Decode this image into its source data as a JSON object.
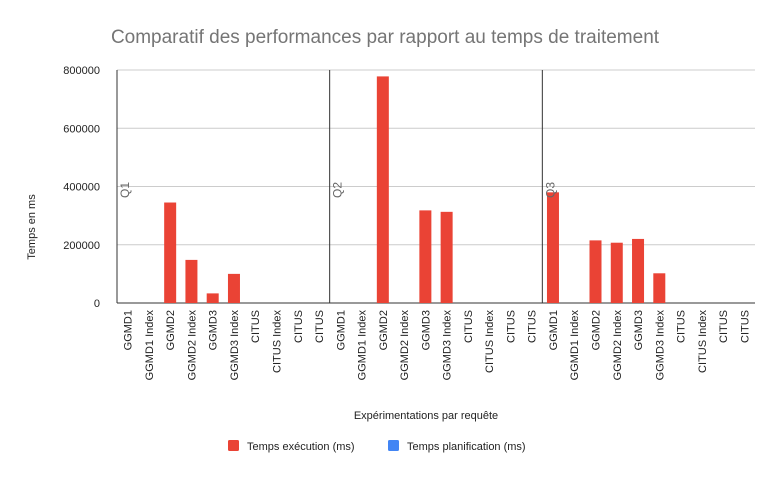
{
  "chart_data": {
    "type": "bar",
    "title": "Comparatif des performances par rapport au temps de traitement",
    "xlabel": "Expérimentations par requête",
    "ylabel": "Temps en ms",
    "ylim": [
      0,
      800000
    ],
    "yticks": [
      "0",
      "200000",
      "400000",
      "600000",
      "800000"
    ],
    "grid": true,
    "legend_position": "bottom",
    "groups": [
      {
        "name": "Q1",
        "categories": [
          "GGMD1",
          "GGMD1 Index",
          "GGMD2",
          "GGMD2 Index",
          "GGMD3",
          "GGMD3 Index",
          "CITUS",
          "CITUS Index",
          "CITUS",
          "CITUS"
        ],
        "values": [
          0,
          0,
          345000,
          148000,
          33000,
          100000,
          0,
          0,
          0,
          0
        ]
      },
      {
        "name": "Q2",
        "categories": [
          "GGMD1",
          "GGMD1 Index",
          "GGMD2",
          "GGMD2 Index",
          "GGMD3",
          "GGMD3 Index",
          "CITUS",
          "CITUS Index",
          "CITUS",
          "CITUS"
        ],
        "values": [
          0,
          0,
          778000,
          0,
          318000,
          313000,
          0,
          0,
          0,
          0
        ]
      },
      {
        "name": "Q3",
        "categories": [
          "GGMD1",
          "GGMD1 Index",
          "GGMD2",
          "GGMD2 Index",
          "GGMD3",
          "GGMD3 Index",
          "CITUS",
          "CITUS Index",
          "CITUS",
          "CITUS"
        ],
        "values": [
          380000,
          0,
          215000,
          207000,
          220000,
          102000,
          0,
          0,
          0,
          0
        ]
      }
    ],
    "series": [
      {
        "name": "Temps exécution (ms)",
        "color": "#ea4335"
      },
      {
        "name": "Temps planification (ms)",
        "color": "#4285f4"
      }
    ],
    "gridColor": "#cccccc",
    "separatorColor": "#333333"
  }
}
